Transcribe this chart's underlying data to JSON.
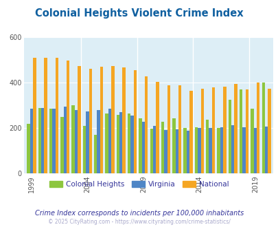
{
  "title": "Colonial Heights Violent Crime Index",
  "title_color": "#1060a0",
  "plot_bg_color": "#ddeef6",
  "fig_bg_color": "#ffffff",
  "years": [
    1999,
    2000,
    2001,
    2002,
    2003,
    2004,
    2005,
    2006,
    2007,
    2008,
    2009,
    2010,
    2011,
    2012,
    2013,
    2014,
    2015,
    2016,
    2017,
    2018,
    2019,
    2020
  ],
  "colonial_heights": [
    220,
    290,
    285,
    250,
    300,
    210,
    170,
    265,
    260,
    265,
    245,
    198,
    228,
    245,
    200,
    205,
    237,
    200,
    325,
    370,
    285,
    400
  ],
  "virginia": [
    285,
    290,
    285,
    295,
    280,
    275,
    280,
    285,
    270,
    255,
    228,
    210,
    192,
    195,
    190,
    200,
    200,
    205,
    215,
    205,
    200,
    207
  ],
  "national": [
    510,
    510,
    510,
    498,
    475,
    463,
    470,
    475,
    467,
    455,
    430,
    405,
    390,
    390,
    366,
    373,
    380,
    383,
    395,
    370,
    400,
    375
  ],
  "ylim": [
    0,
    600
  ],
  "yticks": [
    0,
    200,
    400,
    600
  ],
  "xtick_years": [
    1999,
    2004,
    2009,
    2014,
    2019
  ],
  "colonial_color": "#8dc63f",
  "virginia_color": "#4f86c6",
  "national_color": "#f5a623",
  "subtitle": "Crime Index corresponds to incidents per 100,000 inhabitants",
  "subtitle_color": "#333399",
  "footer": "© 2025 CityRating.com - https://www.cityrating.com/crime-statistics/",
  "footer_color": "#aaaacc",
  "legend_labels": [
    "Colonial Heights",
    "Virginia",
    "National"
  ],
  "bar_width": 0.27
}
